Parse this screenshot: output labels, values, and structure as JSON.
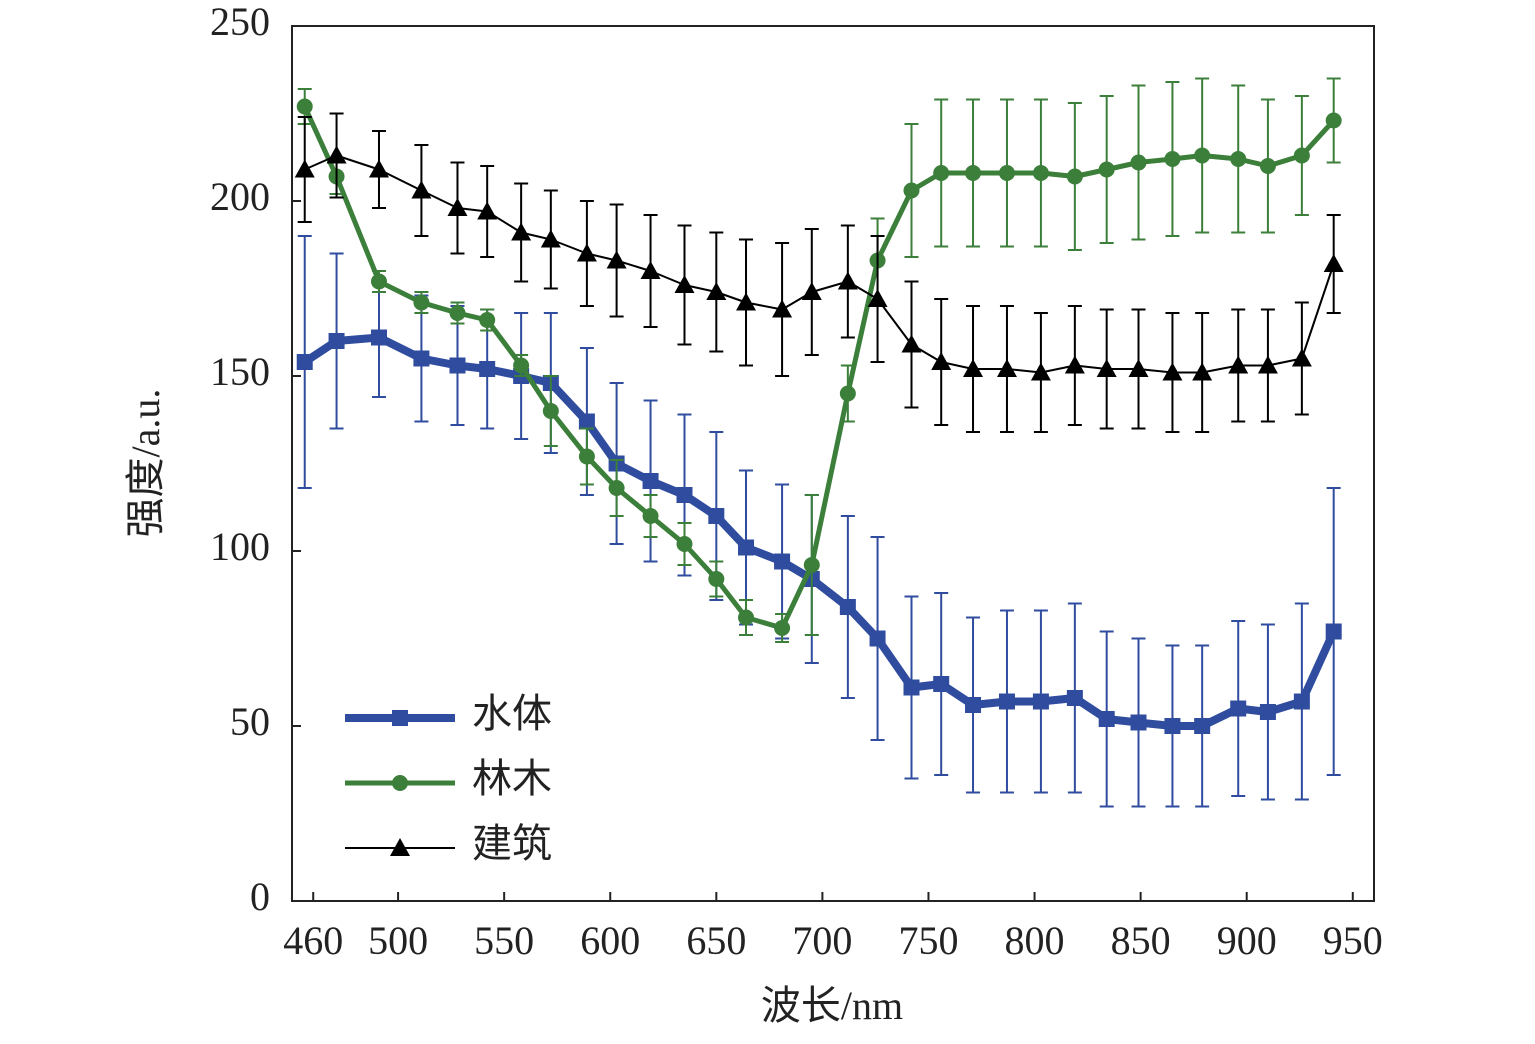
{
  "chart_data": {
    "type": "line",
    "xlabel": "波长/nm",
    "ylabel": "强度/a.u.",
    "x": [
      456,
      471,
      491,
      511,
      528,
      542,
      558,
      572,
      589,
      603,
      619,
      635,
      650,
      664,
      681,
      695,
      712,
      726,
      742,
      756,
      771,
      787,
      803,
      819,
      834,
      849,
      865,
      879,
      896,
      910,
      926,
      941
    ],
    "series": [
      {
        "name": "水体",
        "color": "#2f4c9f",
        "marker": "square",
        "values": [
          154,
          160,
          161,
          155,
          153,
          152,
          150,
          148,
          137,
          125,
          120,
          116,
          110,
          101,
          97,
          92,
          84,
          75,
          61,
          62,
          56,
          57,
          57,
          58,
          52,
          51,
          50,
          50,
          55,
          54,
          57,
          77
        ],
        "errors": [
          36,
          25,
          17,
          18,
          17,
          17,
          18,
          20,
          21,
          23,
          23,
          23,
          24,
          22,
          22,
          24,
          26,
          29,
          26,
          26,
          25,
          26,
          26,
          27,
          25,
          24,
          23,
          23,
          25,
          25,
          28,
          41
        ]
      },
      {
        "name": "林木",
        "color": "#3b7f3a",
        "marker": "circle",
        "values": [
          227,
          207,
          177,
          171,
          168,
          166,
          153,
          140,
          127,
          118,
          110,
          102,
          92,
          81,
          78,
          96,
          145,
          183,
          203,
          208,
          208,
          208,
          208,
          207,
          209,
          211,
          212,
          213,
          212,
          210,
          213,
          223
        ],
        "errors": [
          5,
          5,
          3,
          3,
          3,
          3,
          3,
          10,
          8,
          8,
          6,
          6,
          5,
          5,
          4,
          20,
          8,
          12,
          19,
          21,
          21,
          21,
          21,
          21,
          21,
          22,
          22,
          22,
          21,
          19,
          17,
          12
        ]
      },
      {
        "name": "建筑",
        "color": "#000000",
        "marker": "triangle",
        "values": [
          209,
          213,
          209,
          203,
          198,
          197,
          191,
          189,
          185,
          183,
          180,
          176,
          174,
          171,
          169,
          174,
          177,
          172,
          159,
          154,
          152,
          152,
          151,
          153,
          152,
          152,
          151,
          151,
          153,
          153,
          155,
          182
        ],
        "errors": [
          15,
          12,
          11,
          13,
          13,
          13,
          14,
          14,
          15,
          16,
          16,
          17,
          17,
          18,
          19,
          18,
          16,
          18,
          18,
          18,
          18,
          18,
          17,
          17,
          17,
          17,
          17,
          17,
          16,
          16,
          16,
          14
        ]
      }
    ],
    "xlim": [
      450,
      960
    ],
    "xticks": [
      460,
      500,
      550,
      600,
      650,
      700,
      750,
      800,
      850,
      900,
      950
    ],
    "ylim": [
      0,
      250
    ],
    "yticks": [
      0,
      50,
      100,
      150,
      200,
      250
    ],
    "legend": "lower left"
  }
}
